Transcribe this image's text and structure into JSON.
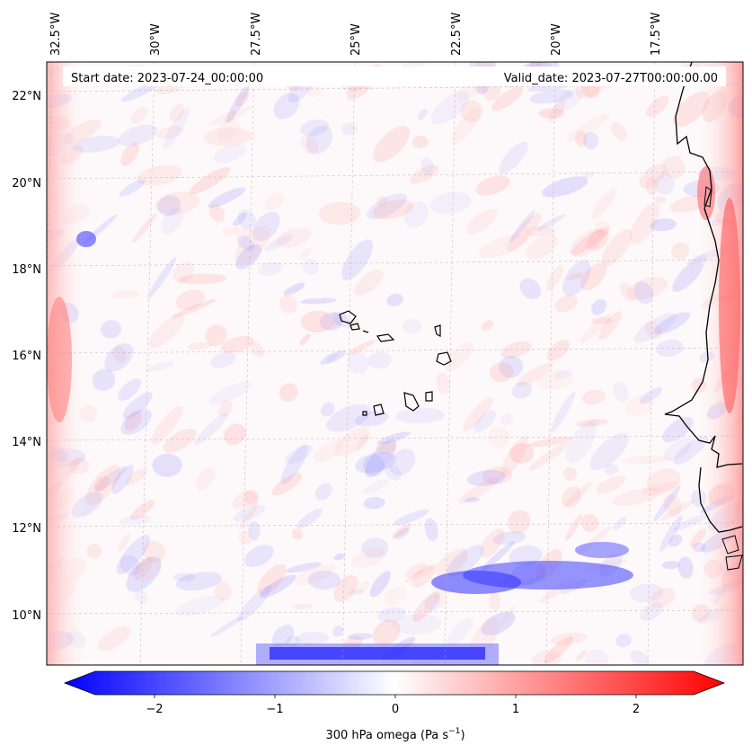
{
  "header": {
    "start_date": "Start date: 2023-07-24_00:00:00",
    "valid_date": "Valid_date: 2023-07-27T00:00:00.00"
  },
  "lon_labels": [
    "32.5°W",
    "30°W",
    "27.5°W",
    "25°W",
    "22.5°W",
    "20°W",
    "17.5°W"
  ],
  "lat_labels": [
    "22°N",
    "20°N",
    "18°N",
    "16°N",
    "14°N",
    "12°N",
    "10°N"
  ],
  "colorbar": {
    "ticks": [
      "−2",
      "−1",
      "0",
      "1",
      "2"
    ],
    "label_main": "300 hPa omega (Pa s",
    "label_sup": "−1",
    "label_end": ")",
    "colors": {
      "neg": "#0000ff",
      "mid": "#ffffff",
      "pos": "#ff0000"
    }
  },
  "map": {
    "projection_lon_range": [
      "32.5°W",
      "16°W"
    ],
    "lat_range": [
      "9°N",
      "22.8°N"
    ]
  }
}
